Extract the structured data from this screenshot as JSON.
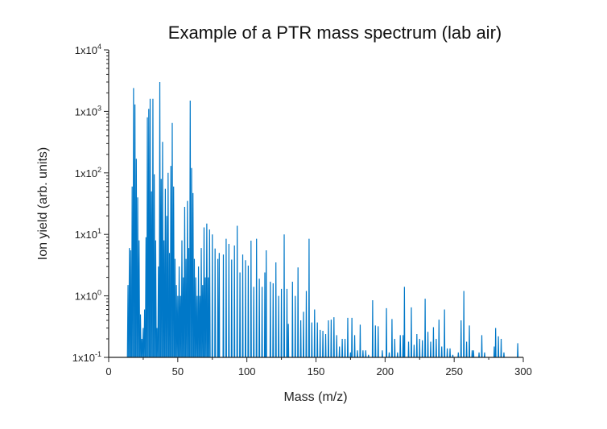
{
  "chart_data": {
    "type": "line",
    "title": "Example of a PTR mass spectrum (lab air)",
    "xlabel": "Mass (m/z)",
    "ylabel": "Ion yield (arb. units)",
    "xlim": [
      0,
      300
    ],
    "ylim": [
      0.1,
      10000
    ],
    "yscale": "log",
    "grid": false,
    "legend": "none",
    "color": "#0078c8",
    "x_ticks": [
      0,
      50,
      100,
      150,
      200,
      250,
      300
    ],
    "x_tick_labels": [
      "0",
      "50",
      "100",
      "150",
      "200",
      "250",
      "300"
    ],
    "y_ticks": [
      {
        "value": 0.1,
        "base": "1x10",
        "exp": "-1"
      },
      {
        "value": 1,
        "base": "1x10",
        "exp": "0"
      },
      {
        "value": 10,
        "base": "1x10",
        "exp": "1"
      },
      {
        "value": 100,
        "base": "1x10",
        "exp": "2"
      },
      {
        "value": 1000,
        "base": "1x10",
        "exp": "3"
      },
      {
        "value": 10000,
        "base": "1x10",
        "exp": "4"
      }
    ],
    "x": [
      14,
      15,
      16,
      17,
      18,
      19,
      20,
      21,
      22,
      23,
      24,
      25,
      26,
      27,
      28,
      29,
      30,
      31,
      32,
      33,
      34,
      35,
      36,
      37,
      38,
      39,
      40,
      41,
      42,
      43,
      44,
      45,
      46,
      47,
      48,
      49,
      50,
      51,
      52,
      53,
      54,
      55,
      56,
      57,
      58,
      59,
      60,
      61,
      62,
      63,
      64,
      65,
      66,
      67,
      68,
      69,
      70,
      71,
      72,
      73,
      75,
      77,
      79,
      80,
      83,
      85,
      87,
      89,
      91,
      93,
      95,
      97,
      99,
      101,
      103,
      105,
      107,
      109,
      111,
      113,
      114,
      117,
      119,
      121,
      123,
      125,
      127,
      129,
      130,
      133,
      135,
      137,
      139,
      141,
      143,
      145,
      147,
      149,
      151,
      153,
      155,
      157,
      159,
      161,
      163,
      165,
      167,
      169,
      171,
      173,
      175,
      176,
      178,
      180,
      182,
      184,
      186,
      188,
      191,
      193,
      195,
      198,
      201,
      203,
      205,
      207,
      209,
      211,
      213,
      214,
      217,
      219,
      221,
      223,
      225,
      227,
      229,
      231,
      233,
      235,
      237,
      239,
      241,
      243,
      245,
      247,
      249,
      253,
      255,
      257,
      259,
      261,
      263,
      264,
      268,
      270,
      272,
      279,
      280,
      282,
      284,
      286,
      296
    ],
    "y": [
      1.5,
      6,
      5.5,
      60,
      2400,
      1300,
      170,
      40,
      8,
      0.5,
      0.2,
      0.3,
      0.6,
      9,
      800,
      1100,
      1600,
      50,
      1600,
      95,
      8,
      0.3,
      3,
      3000,
      80,
      320,
      8,
      55,
      20,
      100,
      5,
      130,
      650,
      60,
      4,
      1.5,
      1,
      3,
      1,
      8,
      2,
      28,
      4,
      35,
      6,
      1500,
      120,
      47,
      4,
      2,
      1,
      3,
      1,
      6,
      1.5,
      13,
      2,
      15,
      2,
      12,
      10,
      5.9,
      4,
      5,
      4.7,
      8.5,
      7,
      3.9,
      6.6,
      13.8,
      2.4,
      4.7,
      3.8,
      3.1,
      7.9,
      1.4,
      8.5,
      1.9,
      1.4,
      2.4,
      5.5,
      1.7,
      1.6,
      3.5,
      1.0,
      1.3,
      10,
      1.3,
      0.35,
      1.7,
      1.0,
      2.9,
      0.4,
      0.55,
      1.2,
      8.5,
      0.37,
      0.6,
      0.37,
      0.28,
      0.27,
      0.24,
      0.4,
      0.41,
      0.45,
      0.23,
      0.15,
      0.2,
      0.2,
      0.44,
      0.12,
      0.44,
      0.23,
      0.13,
      0.34,
      0.13,
      0.13,
      0.11,
      0.85,
      0.33,
      0.32,
      0.13,
      0.63,
      0.12,
      0.42,
      0.2,
      0.12,
      0.23,
      0.23,
      1.4,
      0.18,
      0.65,
      0.16,
      0.24,
      0.2,
      0.19,
      0.9,
      0.26,
      0.18,
      0.31,
      0.2,
      0.41,
      0.15,
      0.6,
      0.14,
      0.14,
      0.11,
      0.12,
      0.4,
      1.2,
      0.18,
      0.33,
      0.13,
      0.13,
      0.12,
      0.23,
      0.12,
      0.15,
      0.3,
      0.22,
      0.2,
      0.12,
      0.17
    ]
  }
}
